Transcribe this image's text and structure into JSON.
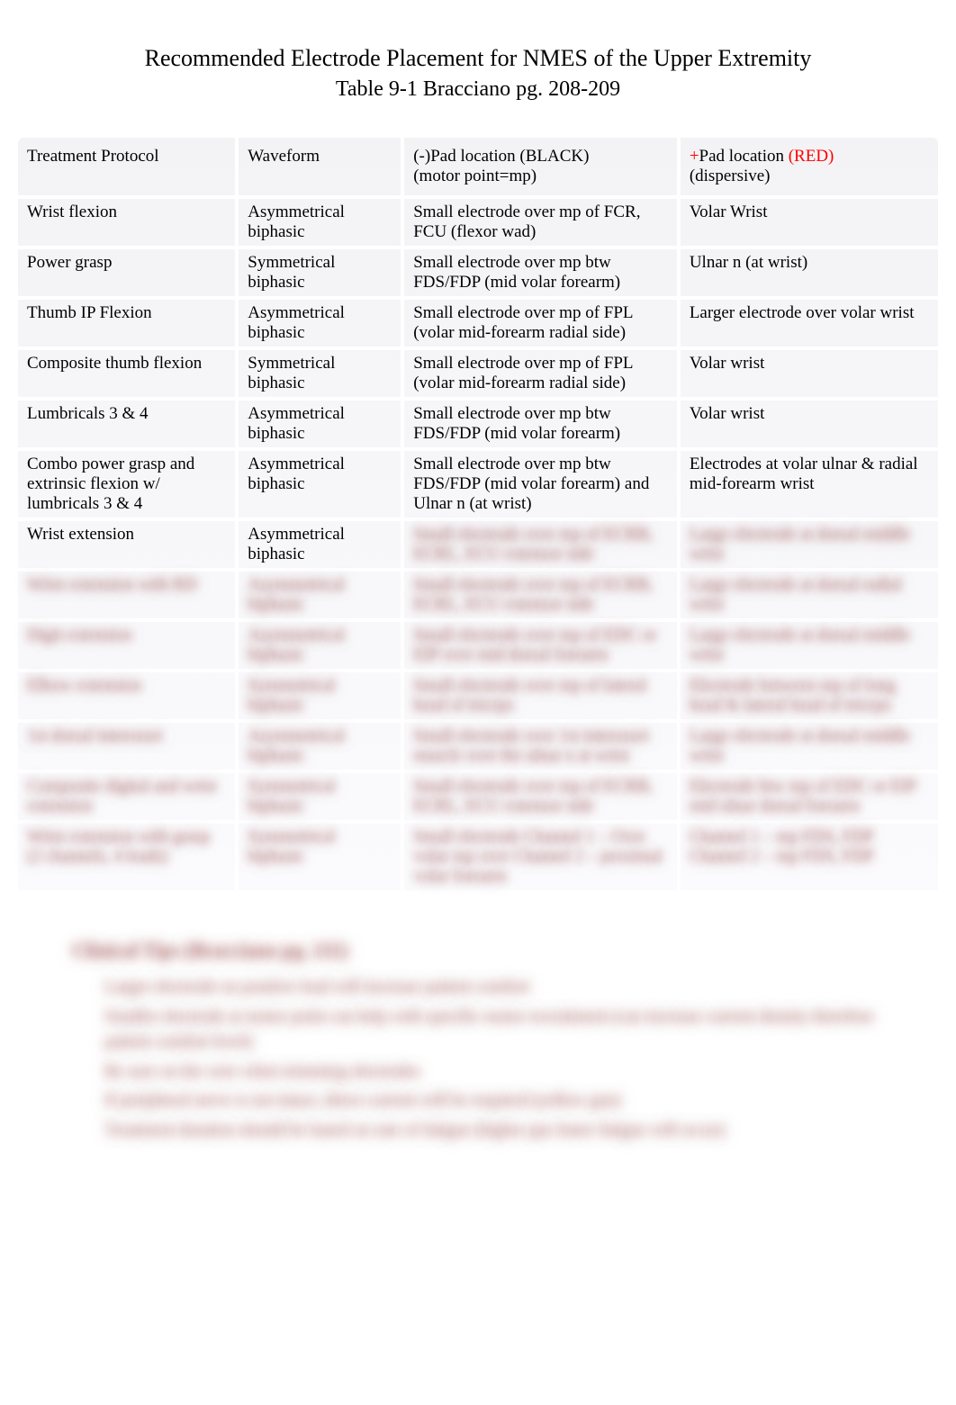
{
  "title": "Recommended Electrode Placement for NMES of the Upper Extremity",
  "subtitle": "Table 9-1 Bracciano pg. 208-209",
  "title_fontsize": 26,
  "subtitle_fontsize": 24,
  "body_fontsize": 19,
  "colors": {
    "text": "#000000",
    "red": "#ff0000",
    "background": "#ffffff",
    "table_bg_top": "#f3f3f5",
    "table_bg_bottom": "#fbfbfd",
    "cell_gap": "#ffffff",
    "blur_tint": "rgba(150,30,30,0.55)"
  },
  "table": {
    "col_widths_pct": [
      24,
      18,
      30,
      28
    ],
    "header": {
      "c1": "Treatment Protocol",
      "c2": "Waveform",
      "c3_pre": "(-)",
      "c3_mid": "Pad location",
      "c3_black": " (BLACK)",
      "c3_sub": "(motor point=mp)",
      "c4_plus": "+",
      "c4_mid": "Pad location",
      "c4_red": " (RED)",
      "c4_sub": "(dispersive)"
    },
    "rows": [
      {
        "protocol": "Wrist flexion",
        "waveform": "Asymmetrical biphasic",
        "neg": "Small electrode over mp of FCR, FCU (flexor wad)",
        "pos": "Volar Wrist",
        "blurred": false
      },
      {
        "protocol": "Power grasp",
        "waveform": "Symmetrical biphasic",
        "neg": "Small electrode over mp btw FDS/FDP (mid volar forearm)",
        "pos": "Ulnar n (at wrist)",
        "blurred": false
      },
      {
        "protocol": "Thumb IP Flexion",
        "waveform": "Asymmetrical biphasic",
        "neg": "Small electrode over mp of FPL (volar mid-forearm radial side)",
        "pos": "Larger electrode over volar wrist",
        "blurred": false
      },
      {
        "protocol": "Composite thumb flexion",
        "waveform": "Symmetrical biphasic",
        "neg": "Small electrode over mp of FPL (volar mid-forearm radial side)",
        "pos": "Volar wrist",
        "blurred": false
      },
      {
        "protocol": "Lumbricals 3 & 4",
        "waveform": "Asymmetrical biphasic",
        "neg": "Small electrode over mp btw FDS/FDP (mid volar forearm)",
        "pos": "Volar wrist",
        "blurred": false
      },
      {
        "protocol": "Combo power grasp and extrinsic flexion w/ lumbricals 3 & 4",
        "waveform": "Asymmetrical biphasic",
        "neg": "Small electrode over mp btw FDS/FDP (mid volar forearm) and Ulnar n (at wrist)",
        "pos": "Electrodes at volar ulnar & radial mid-forearm wrist",
        "blurred": false
      },
      {
        "protocol": "Wrist extension",
        "waveform": "Asymmetrical biphasic",
        "neg": "Small electrode over mp of ECRB, ECRL, ECU extensor side",
        "pos": "Large electrode at dorsal middle wrist",
        "blurred": true,
        "clear_cols": [
          0,
          1
        ]
      },
      {
        "protocol": "Wrist extension with RD",
        "waveform": "Asymmetrical biphasic",
        "neg": "Small electrode over mp of ECRB, ECRL, ECU extensor side",
        "pos": "Large electrode at dorsal radial wrist",
        "blurred": true
      },
      {
        "protocol": "Digit extension",
        "waveform": "Asymmetrical biphasic",
        "neg": "Small electrode over mp of EDC or EIP over mid dorsal forearm",
        "pos": "Large electrode at dorsal middle wrist",
        "blurred": true
      },
      {
        "protocol": "Elbow extension",
        "waveform": "Symmetrical biphasic",
        "neg": "Small electrode over mp of lateral head of triceps",
        "pos": "Electrode between mp of long head & lateral head of triceps",
        "blurred": true
      },
      {
        "protocol": "1st dorsal interossei",
        "waveform": "Asymmetrical biphasic",
        "neg": "Small electrode over 1st interossei muscle over the ulnar n at wrist",
        "pos": "Large electrode at dorsal middle wrist",
        "blurred": true
      },
      {
        "protocol": "Composite digital and wrist extension",
        "waveform": "Symmetrical biphasic",
        "neg": "Small electrode over mp of ECRB, ECRL, ECU extensor side",
        "pos": "Electrode btw mp of EDC or EIP mid ulnar dorsal forearm",
        "blurred": true
      },
      {
        "protocol": "Wrist extension with grasp (2 channels, 4 leads)",
        "waveform": "Symmetrical biphasic",
        "neg": "Small electrode Channel 1 – Over volar mp over Channel 2 – proximal volar forearm",
        "pos": "Channel 1 – mp FDS, FDP Channel 2 – mp FDS, FDP",
        "blurred": true
      }
    ]
  },
  "tips": {
    "heading": "Clinical Tips (Bracciano pg. 211)",
    "heading_fontsize": 22,
    "items": [
      "Larger electrode on positive lead will increase patient comfort",
      "Smaller electrode at motor point can help with specific motor recruitment (can increase current density therefore patient comfort level)",
      "Be sure on the wire when trimming electrodes",
      "If peripheral nerve is not intact, direct current will be required (yellow gun)",
      "Treatment duration should be based on rate of fatigue (higher pps faster fatigue will occur)"
    ]
  }
}
